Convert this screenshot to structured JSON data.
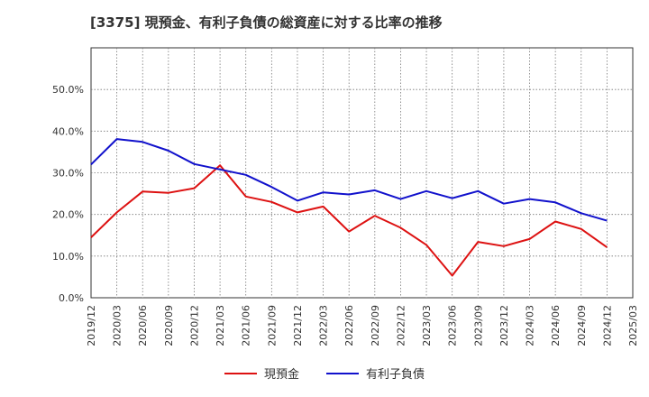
{
  "chart_data": {
    "type": "line",
    "title": "[3375]  現預金、有利子負債の総資産に対する比率の推移",
    "x": [
      "2019/12",
      "2020/03",
      "2020/06",
      "2020/09",
      "2020/12",
      "2021/03",
      "2021/06",
      "2021/09",
      "2021/12",
      "2022/03",
      "2022/06",
      "2022/09",
      "2022/12",
      "2023/03",
      "2023/06",
      "2023/09",
      "2023/12",
      "2024/03",
      "2024/06",
      "2024/09",
      "2024/12",
      "2025/03"
    ],
    "ylim": [
      0,
      60
    ],
    "yticks": [
      0,
      10,
      20,
      30,
      40,
      50
    ],
    "ytick_labels": [
      "0.0%",
      "10.0%",
      "20.0%",
      "30.0%",
      "40.0%",
      "50.0%"
    ],
    "series": [
      {
        "name": "現預金",
        "color": "#dd1111",
        "values": [
          14.5,
          20.5,
          25.5,
          25.2,
          26.3,
          31.8,
          24.3,
          23.0,
          20.5,
          21.9,
          15.9,
          19.7,
          16.8,
          12.7,
          5.3,
          13.4,
          12.4,
          14.1,
          18.3,
          16.5,
          12.1,
          null
        ]
      },
      {
        "name": "有利子負債",
        "color": "#1111cc",
        "values": [
          32.0,
          38.1,
          37.4,
          35.3,
          32.1,
          30.8,
          29.5,
          26.6,
          23.3,
          25.3,
          24.8,
          25.8,
          23.7,
          25.6,
          23.9,
          25.6,
          22.6,
          23.7,
          22.9,
          20.3,
          18.5,
          null
        ]
      }
    ]
  }
}
